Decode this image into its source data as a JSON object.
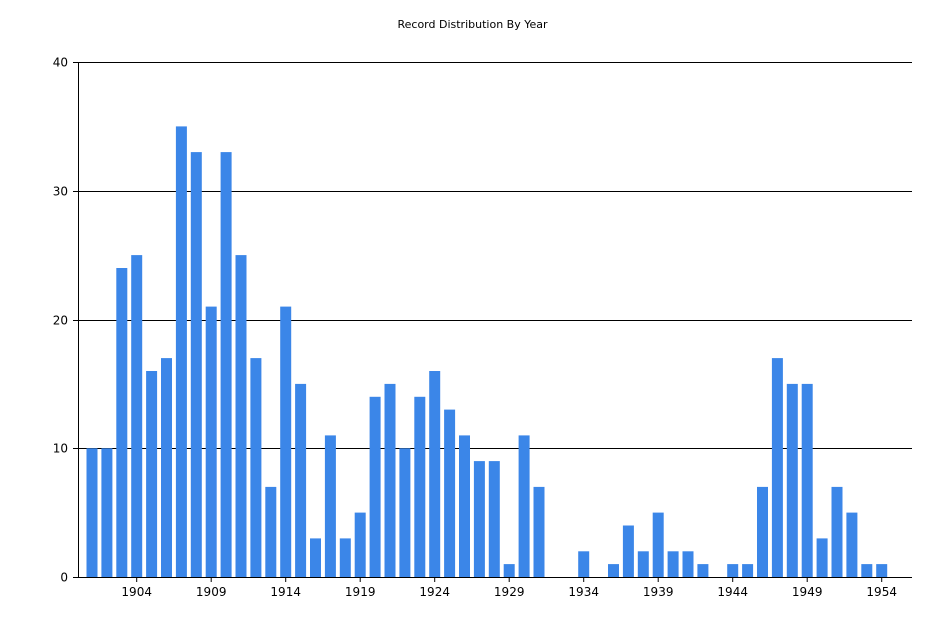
{
  "chart_data": {
    "type": "bar",
    "title": "Record Distribution By Year",
    "xlabel": "",
    "ylabel": "",
    "categories": [
      1901,
      1902,
      1903,
      1904,
      1905,
      1906,
      1907,
      1908,
      1909,
      1910,
      1911,
      1912,
      1913,
      1914,
      1915,
      1916,
      1917,
      1918,
      1919,
      1920,
      1921,
      1922,
      1923,
      1924,
      1925,
      1926,
      1927,
      1928,
      1929,
      1930,
      1931,
      1932,
      1933,
      1934,
      1935,
      1936,
      1937,
      1938,
      1939,
      1940,
      1941,
      1942,
      1943,
      1944,
      1945,
      1946,
      1947,
      1948,
      1949,
      1950,
      1951,
      1952,
      1953,
      1954
    ],
    "values": [
      10,
      10,
      24,
      25,
      16,
      17,
      35,
      33,
      21,
      33,
      25,
      17,
      7,
      21,
      15,
      3,
      11,
      3,
      5,
      14,
      15,
      10,
      14,
      16,
      13,
      11,
      9,
      9,
      1,
      11,
      7,
      0,
      0,
      2,
      0,
      1,
      4,
      2,
      5,
      2,
      2,
      1,
      0,
      1,
      1,
      7,
      17,
      15,
      15,
      3,
      7,
      5,
      1,
      1
    ],
    "ylim": [
      0,
      40
    ],
    "yticks": [
      0,
      10,
      20,
      30,
      40
    ],
    "xtick_labels": [
      1904,
      1909,
      1914,
      1919,
      1924,
      1929,
      1934,
      1939,
      1944,
      1949,
      1954
    ],
    "grid": "horizontal",
    "bar_color": "#3b86e8"
  }
}
